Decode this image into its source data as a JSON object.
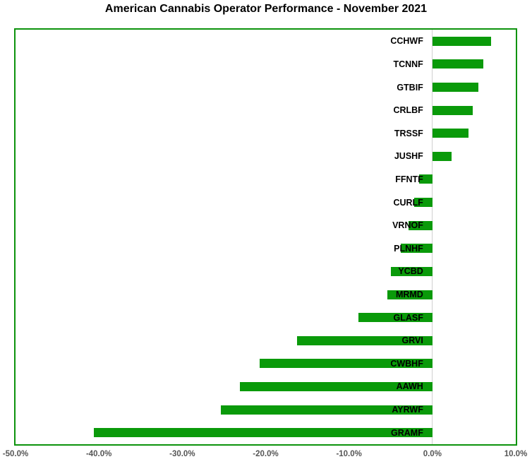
{
  "chart_data": {
    "type": "bar",
    "orientation": "horizontal",
    "title": "American Cannabis Operator Performance - November 2021",
    "categories": [
      "CCHWF",
      "TCNNF",
      "GTBIF",
      "CRLBF",
      "TRSSF",
      "JUSHF",
      "FFNTF",
      "CURLF",
      "VRNOF",
      "PLNHF",
      "YCBD",
      "MRMD",
      "GLASF",
      "GRVI",
      "CWBHF",
      "AAWH",
      "AYRWF",
      "GRAMF"
    ],
    "values": [
      7.0,
      6.1,
      5.5,
      4.8,
      4.3,
      2.3,
      -1.6,
      -2.2,
      -2.9,
      -3.8,
      -5.0,
      -5.4,
      -8.9,
      -16.2,
      -20.7,
      -23.1,
      -25.4,
      -40.6
    ],
    "unit": "%",
    "xlabel": "",
    "ylabel": "",
    "xlim": [
      -50,
      10
    ],
    "x_tick_values": [
      -50,
      -40,
      -30,
      -20,
      -10,
      0,
      10
    ],
    "x_tick_labels": [
      "-50.0%",
      "-40.0%",
      "-30.0%",
      "-20.0%",
      "-10.0%",
      "0.0%",
      "10.0%"
    ],
    "grid": "off",
    "legend": "none",
    "colors": {
      "bar": "#0a9a0a",
      "plot_border": "#0d930d",
      "zero_line": "#d0d0d0",
      "tick_label": "#555555",
      "title": "#000000",
      "bar_label": "#000000",
      "background": "#ffffff"
    }
  }
}
